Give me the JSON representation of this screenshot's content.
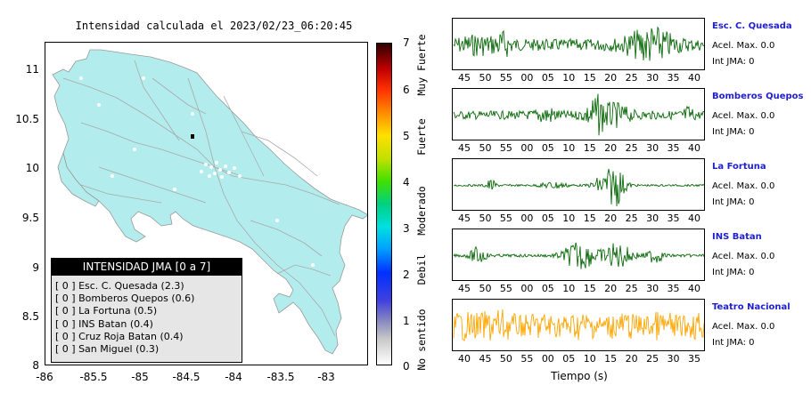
{
  "map": {
    "title": "Intensidad calculada el 2023/02/23_06:20:45",
    "y_ticks": [
      "11",
      "10.5",
      "10",
      "9.5",
      "9",
      "8.5",
      "8"
    ],
    "x_ticks": [
      "-86",
      "-85.5",
      "-85",
      "-84.5",
      "-84",
      "-83.5",
      "-83"
    ],
    "land_color": "#b3ecec"
  },
  "colorbar": {
    "numbers": [
      "7",
      "6",
      "5",
      "4",
      "3",
      "2",
      "1",
      "0"
    ],
    "words": [
      "Muy Fuerte",
      "Fuerte",
      "Moderado",
      "Debil",
      "No sentido"
    ]
  },
  "legend": {
    "title": "INTENSIDAD JMA [0 a 7]",
    "items": [
      "[ 0 ]  Esc. C. Quesada (2.3)",
      "[ 0 ]  Bomberos Quepos (0.6)",
      "[ 0 ]  La Fortuna (0.5)",
      "[ 0 ]  INS Batan (0.4)",
      "[ 0 ]  Cruz Roja Batan (0.4)",
      "[ 0 ]  San Miguel (0.3)"
    ]
  },
  "stations": [
    {
      "name": "Esc. C. Quesada",
      "accel": "Acel. Max. 0.0",
      "jma": "Int JMA: 0",
      "color": "#0a6a0a",
      "ticks": [
        "45",
        "50",
        "55",
        "00",
        "05",
        "10",
        "15",
        "20",
        "25",
        "30",
        "35",
        "40"
      ]
    },
    {
      "name": "Bomberos Quepos",
      "accel": "Acel. Max. 0.0",
      "jma": "Int JMA: 0",
      "color": "#0a6a0a",
      "ticks": [
        "45",
        "50",
        "55",
        "00",
        "05",
        "10",
        "15",
        "20",
        "25",
        "30",
        "35",
        "40"
      ]
    },
    {
      "name": "La Fortuna",
      "accel": "Acel. Max. 0.0",
      "jma": "Int JMA: 0",
      "color": "#0a6a0a",
      "ticks": [
        "45",
        "50",
        "55",
        "00",
        "05",
        "10",
        "15",
        "20",
        "25",
        "30",
        "35",
        "40"
      ]
    },
    {
      "name": "INS Batan",
      "accel": "Acel. Max. 0.0",
      "jma": "Int JMA: 0",
      "color": "#0a6a0a",
      "ticks": [
        "45",
        "50",
        "55",
        "00",
        "05",
        "10",
        "15",
        "20",
        "25",
        "30",
        "35",
        "40"
      ]
    },
    {
      "name": "Teatro Nacional",
      "accel": "Acel. Max. 0.0",
      "jma": "Int JMA: 0",
      "color": "#ffa500",
      "ticks": [
        "40",
        "45",
        "50",
        "55",
        "00",
        "05",
        "10",
        "15",
        "20",
        "25",
        "30",
        "35"
      ]
    }
  ],
  "xlabel": "Tiempo (s)"
}
